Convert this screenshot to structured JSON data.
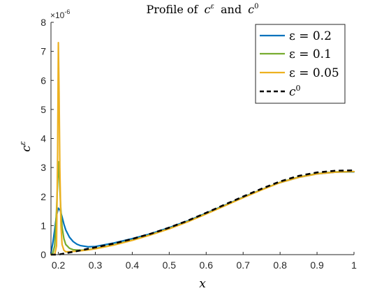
{
  "chart_data": {
    "type": "line",
    "title_prefix": "Profile of",
    "title_c": "c",
    "title_eps_sup": "ε",
    "title_and": "and",
    "title_zero_sup": "0",
    "xlabel": "x",
    "ylabel_base": "c",
    "ylabel_sup": "ε",
    "y_exponent_base": "×10",
    "y_exponent_power": "-6",
    "xlim": [
      0.18,
      1.0
    ],
    "ylim": [
      0,
      8
    ],
    "x_ticks": [
      "0.2",
      "0.3",
      "0.4",
      "0.5",
      "0.6",
      "0.7",
      "0.8",
      "0.9",
      "1"
    ],
    "y_ticks": [
      "0",
      "1",
      "2",
      "3",
      "4",
      "5",
      "6",
      "7",
      "8"
    ],
    "legend_position": "top-right",
    "series": [
      {
        "name": "ε = 0.2",
        "color": "#0072BD",
        "dash": "solid",
        "x": [
          0.18,
          0.185,
          0.19,
          0.195,
          0.2,
          0.205,
          0.21,
          0.215,
          0.22,
          0.23,
          0.24,
          0.25,
          0.26,
          0.28,
          0.3,
          0.35,
          0.4,
          0.45,
          0.5,
          0.55,
          0.6,
          0.65,
          0.7,
          0.75,
          0.8,
          0.85,
          0.9,
          0.95,
          1.0
        ],
        "y": [
          0.05,
          0.4,
          0.85,
          1.35,
          1.6,
          1.52,
          1.3,
          1.05,
          0.85,
          0.6,
          0.45,
          0.36,
          0.31,
          0.27,
          0.28,
          0.4,
          0.55,
          0.72,
          0.93,
          1.16,
          1.43,
          1.7,
          1.98,
          2.24,
          2.48,
          2.66,
          2.78,
          2.84,
          2.85
        ]
      },
      {
        "name": "ε = 0.1",
        "color": "#77AC30",
        "dash": "solid",
        "x": [
          0.18,
          0.185,
          0.19,
          0.195,
          0.2,
          0.203,
          0.206,
          0.21,
          0.215,
          0.22,
          0.23,
          0.24,
          0.26,
          0.28,
          0.3,
          0.35,
          0.4,
          0.45,
          0.5,
          0.55,
          0.6,
          0.65,
          0.7,
          0.75,
          0.8,
          0.85,
          0.9,
          0.95,
          1.0
        ],
        "y": [
          0.0,
          0.05,
          0.3,
          1.5,
          3.2,
          2.6,
          1.7,
          0.95,
          0.55,
          0.35,
          0.22,
          0.17,
          0.15,
          0.17,
          0.21,
          0.34,
          0.5,
          0.69,
          0.9,
          1.14,
          1.41,
          1.69,
          1.97,
          2.24,
          2.49,
          2.67,
          2.79,
          2.85,
          2.86
        ]
      },
      {
        "name": "ε = 0.05",
        "color": "#EDB120",
        "dash": "solid",
        "x": [
          0.18,
          0.19,
          0.195,
          0.198,
          0.2,
          0.202,
          0.204,
          0.207,
          0.21,
          0.215,
          0.22,
          0.23,
          0.25,
          0.28,
          0.3,
          0.35,
          0.4,
          0.45,
          0.5,
          0.55,
          0.6,
          0.65,
          0.7,
          0.75,
          0.8,
          0.85,
          0.9,
          0.95,
          1.0
        ],
        "y": [
          0.0,
          0.0,
          0.3,
          3.5,
          7.3,
          5.5,
          3.0,
          1.0,
          0.35,
          0.15,
          0.1,
          0.1,
          0.12,
          0.16,
          0.2,
          0.33,
          0.49,
          0.68,
          0.89,
          1.13,
          1.4,
          1.68,
          1.96,
          2.23,
          2.48,
          2.66,
          2.78,
          2.84,
          2.86
        ]
      },
      {
        "name": "c",
        "name_sup": "0",
        "color": "#000000",
        "dash": "dashed",
        "x": [
          0.18,
          0.2,
          0.22,
          0.25,
          0.28,
          0.3,
          0.35,
          0.4,
          0.45,
          0.5,
          0.55,
          0.6,
          0.65,
          0.7,
          0.75,
          0.8,
          0.85,
          0.9,
          0.95,
          1.0
        ],
        "y": [
          0.0,
          0.0,
          0.05,
          0.12,
          0.2,
          0.25,
          0.38,
          0.54,
          0.72,
          0.93,
          1.17,
          1.44,
          1.72,
          2.0,
          2.27,
          2.52,
          2.71,
          2.83,
          2.89,
          2.9
        ]
      }
    ]
  }
}
